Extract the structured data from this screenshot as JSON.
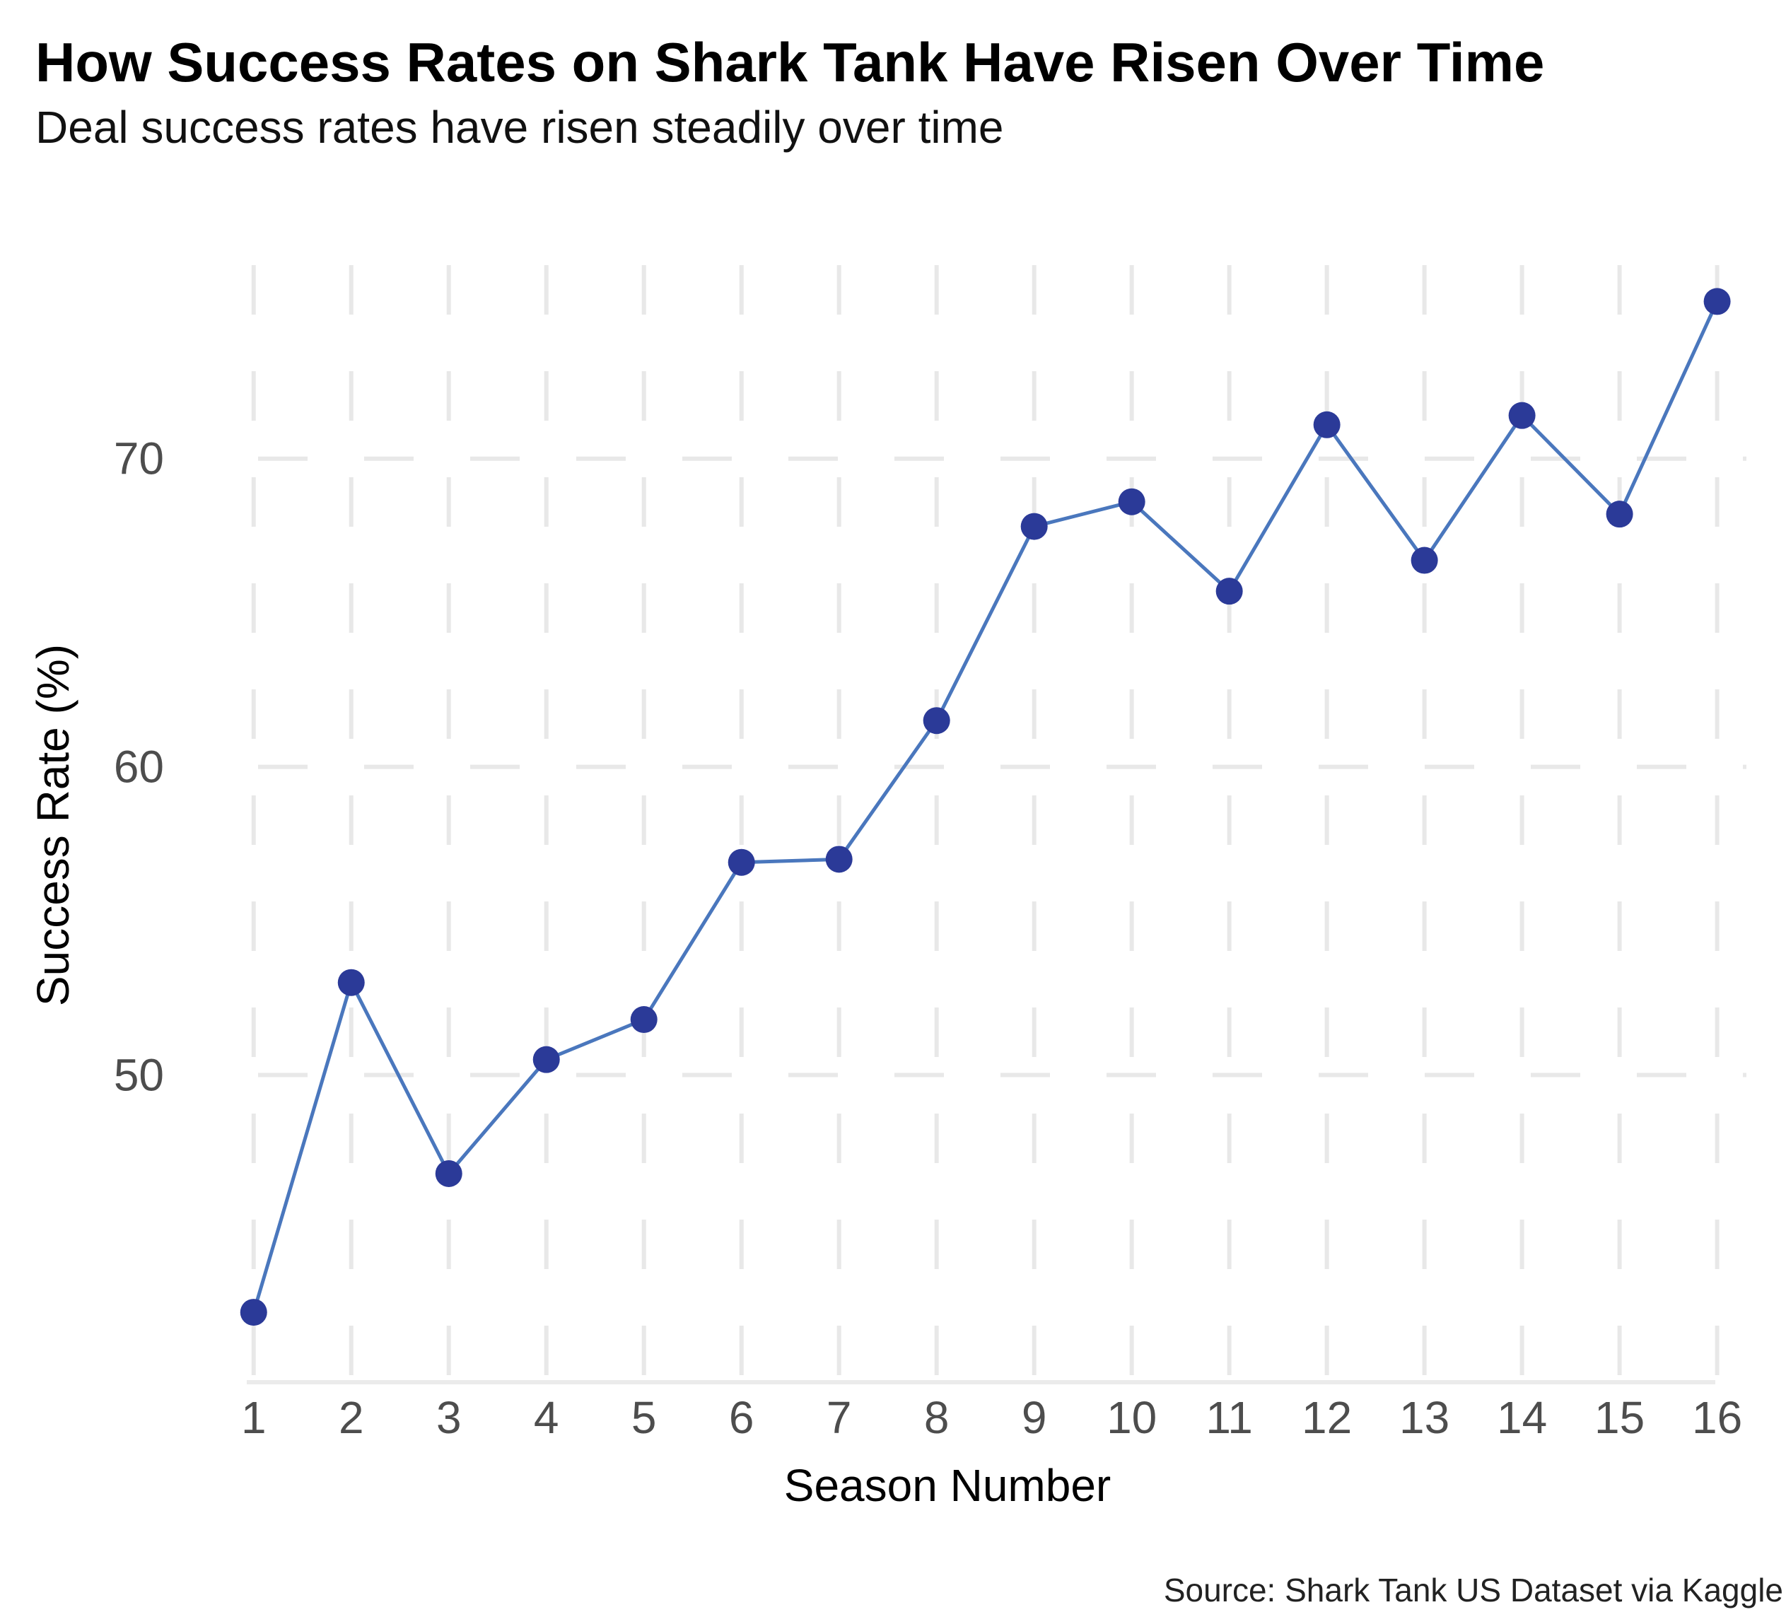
{
  "chart_data": {
    "type": "line",
    "title": "How Success Rates on Shark Tank Have Risen Over Time",
    "subtitle": "Deal success rates have risen steadily over time",
    "xlabel": "Season Number",
    "ylabel": "Success Rate (%)",
    "caption": "Source: Shark Tank US Dataset via Kaggle",
    "x": [
      1,
      2,
      3,
      4,
      5,
      6,
      7,
      8,
      9,
      10,
      11,
      12,
      13,
      14,
      15,
      16
    ],
    "x_tick_labels": [
      "1",
      "2",
      "3",
      "4",
      "5",
      "6",
      "7",
      "8",
      "9",
      "10",
      "11",
      "12",
      "13",
      "14",
      "15",
      "16"
    ],
    "y_ticks": [
      50,
      60,
      70
    ],
    "y_tick_labels": [
      "50",
      "60",
      "70"
    ],
    "xlim": [
      0.98,
      16.3
    ],
    "ylim": [
      40.1,
      78.0
    ],
    "grid": true,
    "series": [
      {
        "name": "Success Rate",
        "values": [
          42.3,
          53.0,
          46.8,
          50.5,
          51.8,
          56.9,
          57.0,
          61.5,
          67.8,
          68.6,
          65.7,
          71.1,
          66.7,
          71.4,
          68.2,
          75.1
        ],
        "line_color": "#4a77bd",
        "point_color": "#2b3a98"
      }
    ]
  }
}
